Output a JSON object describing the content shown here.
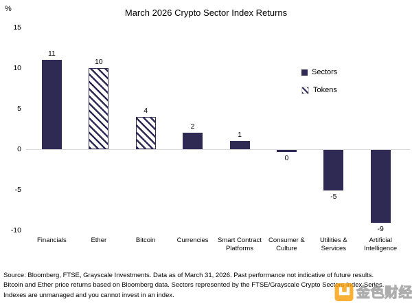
{
  "title": "March 2026 Crypto Sector Index Returns",
  "y_axis": {
    "unit": "%",
    "ticks": [
      15,
      10,
      5,
      0,
      -5,
      -10
    ]
  },
  "legend": {
    "items": [
      {
        "label": "Sectors",
        "style": "solid"
      },
      {
        "label": "Tokens",
        "style": "hatched"
      }
    ]
  },
  "chart_data": {
    "type": "bar",
    "title": "March 2026 Crypto Sector Index Returns",
    "categories": [
      "Financials",
      "Ether",
      "Bitcoin",
      "Currencies",
      "Smart Contract\nPlatforms",
      "Consumer &\nCulture",
      "Utilities &\nServices",
      "Artificial\nIntelligence"
    ],
    "values": [
      11,
      10,
      4,
      2,
      1,
      0,
      -5,
      -9
    ],
    "bar_styles": [
      "solid",
      "hatched",
      "hatched",
      "solid",
      "solid",
      "solid",
      "solid",
      "solid"
    ],
    "series_note": "solid = Sectors, hatched = Tokens",
    "xlabel": "",
    "ylabel": "%",
    "ylim": [
      -10,
      15
    ],
    "grid": false,
    "legend_position": "right",
    "legend": [
      "Sectors",
      "Tokens"
    ]
  },
  "footer": {
    "lines": [
      "Source: Bloomberg, FTSE, Grayscale Investments. Data as of March 31, 2026. Past performance not indicative of future results.",
      "Bitcoin and Ether price returns based on Bloomberg data. Sectors represented by the FTSE/Grayscale Crypto Sectors Index Series.",
      "Indexes are unmanaged and you cannot invest in an index."
    ]
  },
  "watermark": {
    "text": "金色财经",
    "logo_color": "#F7A00F"
  },
  "colors": {
    "bar_solid": "#2F2A54",
    "hatch_line": "#2F2A54",
    "zero_line": "#D9D9D9",
    "text": "#000000"
  }
}
